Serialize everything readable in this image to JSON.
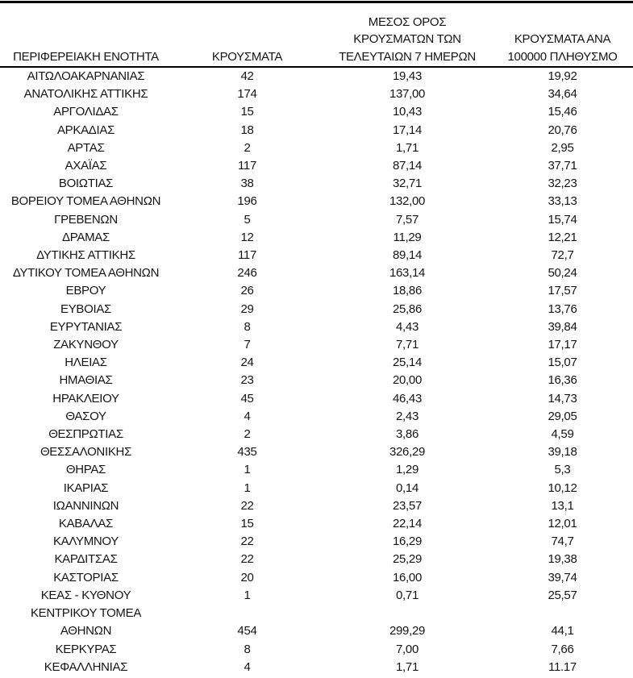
{
  "colors": {
    "background": "#ffffff",
    "text": "#141414",
    "rule": "#000000"
  },
  "table": {
    "columns": [
      {
        "label": "ΠΕΡΙΦΕΡΕΙΑΚΗ ΕΝΟΤΗΤΑ"
      },
      {
        "label": "ΚΡΟΥΣΜΑΤΑ"
      },
      {
        "label": "ΜΕΣΟΣ ΟΡΟΣ\nΚΡΟΥΣΜΑΤΩΝ ΤΩΝ\nΤΕΛΕΥΤΑΙΩΝ 7 ΗΜΕΡΩΝ"
      },
      {
        "label": "ΚΡΟΥΣΜΑΤΑ ΑΝΑ\n100000 ΠΛΗΘΥΣΜΟ"
      }
    ],
    "rows": [
      {
        "region": "ΑΙΤΩΛΟΑΚΑΡΝΑΝΙΑΣ",
        "cases": "42",
        "avg7": "19,43",
        "per100k": "19,92"
      },
      {
        "region": "ΑΝΑΤΟΛΙΚΗΣ ΑΤΤΙΚΗΣ",
        "cases": "174",
        "avg7": "137,00",
        "per100k": "34,64"
      },
      {
        "region": "ΑΡΓΟΛΙΔΑΣ",
        "cases": "15",
        "avg7": "10,43",
        "per100k": "15,46"
      },
      {
        "region": "ΑΡΚΑΔΙΑΣ",
        "cases": "18",
        "avg7": "17,14",
        "per100k": "20,76"
      },
      {
        "region": "ΑΡΤΑΣ",
        "cases": "2",
        "avg7": "1,71",
        "per100k": "2,95"
      },
      {
        "region": "ΑΧΑΪΑΣ",
        "cases": "117",
        "avg7": "87,14",
        "per100k": "37,71"
      },
      {
        "region": "ΒΟΙΩΤΙΑΣ",
        "cases": "38",
        "avg7": "32,71",
        "per100k": "32,23"
      },
      {
        "region": "ΒΟΡΕΙΟΥ ΤΟΜΕΑ ΑΘΗΝΩΝ",
        "cases": "196",
        "avg7": "132,00",
        "per100k": "33,13"
      },
      {
        "region": "ΓΡΕΒΕΝΩΝ",
        "cases": "5",
        "avg7": "7,57",
        "per100k": "15,74"
      },
      {
        "region": "ΔΡΑΜΑΣ",
        "cases": "12",
        "avg7": "11,29",
        "per100k": "12,21"
      },
      {
        "region": "ΔΥΤΙΚΗΣ ΑΤΤΙΚΗΣ",
        "cases": "117",
        "avg7": "89,14",
        "per100k": "72,7"
      },
      {
        "region": "ΔΥΤΙΚΟΥ ΤΟΜΕΑ ΑΘΗΝΩΝ",
        "cases": "246",
        "avg7": "163,14",
        "per100k": "50,24"
      },
      {
        "region": "ΕΒΡΟΥ",
        "cases": "26",
        "avg7": "18,86",
        "per100k": "17,57"
      },
      {
        "region": "ΕΥΒΟΙΑΣ",
        "cases": "29",
        "avg7": "25,86",
        "per100k": "13,76"
      },
      {
        "region": "ΕΥΡΥΤΑΝΙΑΣ",
        "cases": "8",
        "avg7": "4,43",
        "per100k": "39,84"
      },
      {
        "region": "ΖΑΚΥΝΘΟΥ",
        "cases": "7",
        "avg7": "7,71",
        "per100k": "17,17"
      },
      {
        "region": "ΗΛΕΙΑΣ",
        "cases": "24",
        "avg7": "25,14",
        "per100k": "15,07"
      },
      {
        "region": "ΗΜΑΘΙΑΣ",
        "cases": "23",
        "avg7": "20,00",
        "per100k": "16,36"
      },
      {
        "region": "ΗΡΑΚΛΕΙΟΥ",
        "cases": "45",
        "avg7": "46,43",
        "per100k": "14,73"
      },
      {
        "region": "ΘΑΣΟΥ",
        "cases": "4",
        "avg7": "2,43",
        "per100k": "29,05"
      },
      {
        "region": "ΘΕΣΠΡΩΤΙΑΣ",
        "cases": "2",
        "avg7": "3,86",
        "per100k": "4,59"
      },
      {
        "region": "ΘΕΣΣΑΛΟΝΙΚΗΣ",
        "cases": "435",
        "avg7": "326,29",
        "per100k": "39,18"
      },
      {
        "region": "ΘΗΡΑΣ",
        "cases": "1",
        "avg7": "1,29",
        "per100k": "5,3"
      },
      {
        "region": "ΙΚΑΡΙΑΣ",
        "cases": "1",
        "avg7": "0,14",
        "per100k": "10,12"
      },
      {
        "region": "ΙΩΑΝΝΙΝΩΝ",
        "cases": "22",
        "avg7": "23,57",
        "per100k": "13,1"
      },
      {
        "region": "ΚΑΒΑΛΑΣ",
        "cases": "15",
        "avg7": "22,14",
        "per100k": "12,01"
      },
      {
        "region": "ΚΑΛΥΜΝΟΥ",
        "cases": "22",
        "avg7": "16,29",
        "per100k": "74,7"
      },
      {
        "region": "ΚΑΡΔΙΤΣΑΣ",
        "cases": "22",
        "avg7": "25,29",
        "per100k": "19,38"
      },
      {
        "region": "ΚΑΣΤΟΡΙΑΣ",
        "cases": "20",
        "avg7": "16,00",
        "per100k": "39,74"
      },
      {
        "region": "ΚΕΑΣ - ΚΥΘΝΟΥ",
        "cases": "1",
        "avg7": "0,71",
        "per100k": "25,57"
      },
      {
        "region": "ΚΕΝΤΡΙΚΟΥ ΤΟΜΕΑ\nΑΘΗΝΩΝ",
        "cases": "454",
        "avg7": "299,29",
        "per100k": "44,1"
      },
      {
        "region": "ΚΕΡΚΥΡΑΣ",
        "cases": "8",
        "avg7": "7,00",
        "per100k": "7,66"
      },
      {
        "region": "ΚΕΦΑΛΛΗΝΙΑΣ",
        "cases": "4",
        "avg7": "1,71",
        "per100k": "11.17"
      }
    ]
  }
}
